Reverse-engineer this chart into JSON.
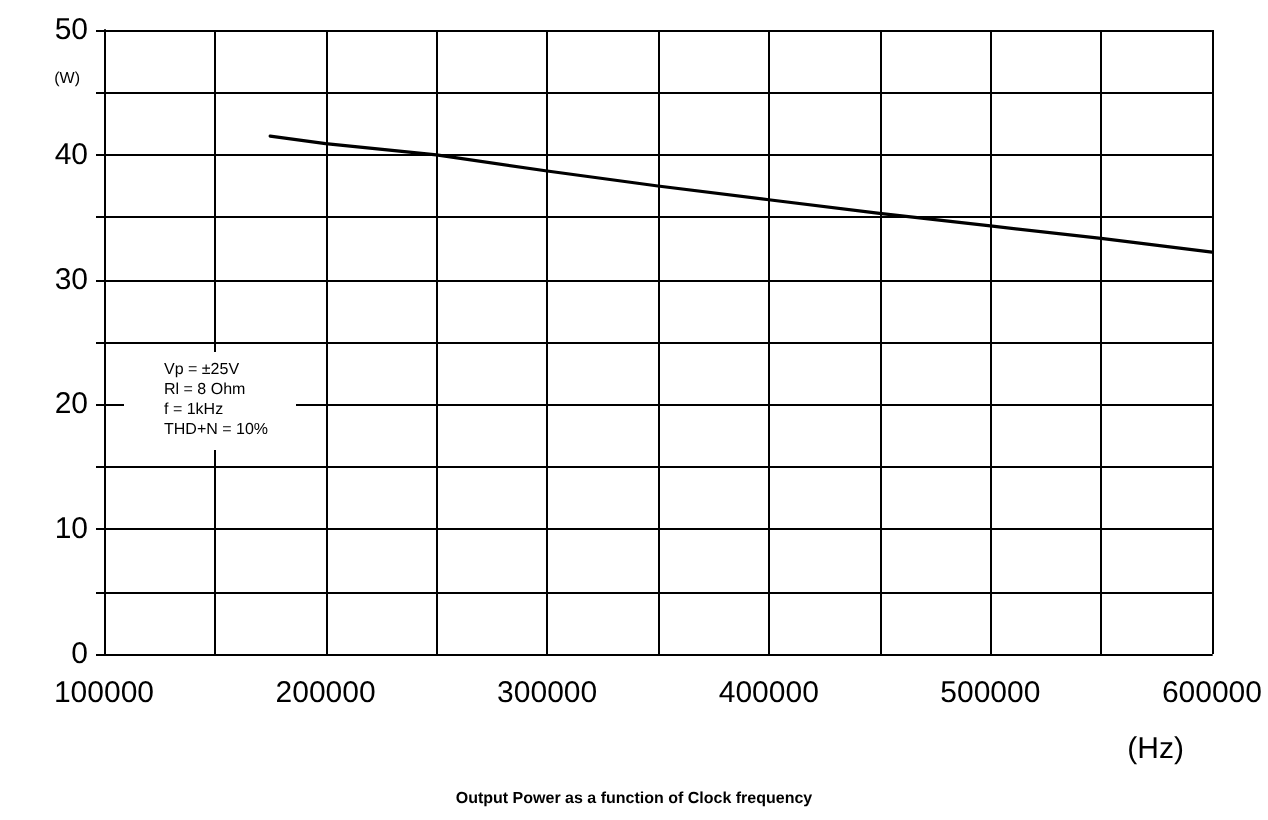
{
  "chart_data": {
    "type": "line",
    "title": "Output Power as a function of Clock frequency",
    "xlabel": "(Hz)",
    "ylabel": "(W)",
    "x": [
      175000,
      200000,
      250000,
      300000,
      350000,
      400000,
      450000,
      500000,
      550000,
      600000
    ],
    "series": [
      {
        "color": "#000000",
        "values": [
          41.5,
          40.9,
          40,
          38.7,
          37.5,
          36.4,
          35.3,
          34.3,
          33.3,
          32.2
        ]
      }
    ],
    "xlim": [
      100000,
      600000
    ],
    "xticks": [
      100000,
      {
        "value": 150000,
        "label": null
      },
      200000,
      {
        "value": 250000,
        "label": null
      },
      300000,
      {
        "value": 350000,
        "label": null
      },
      400000,
      {
        "value": 450000,
        "label": null
      },
      500000,
      {
        "value": 550000,
        "label": null
      },
      600000
    ],
    "ylim": [
      0,
      50
    ],
    "yticks": [
      0,
      {
        "value": 5,
        "label": null
      },
      10,
      {
        "value": 15,
        "label": null
      },
      20,
      {
        "value": 25,
        "label": null
      },
      30,
      {
        "value": 35,
        "label": null
      },
      40,
      {
        "value": 45,
        "label": null
      },
      50
    ],
    "grid": true,
    "marker": "none",
    "line_style": "solid",
    "annotations": [
      "Vp = ±25V\nRl = 8 Ohm\nf = 1kHz\nTHD+N = 10%"
    ]
  }
}
